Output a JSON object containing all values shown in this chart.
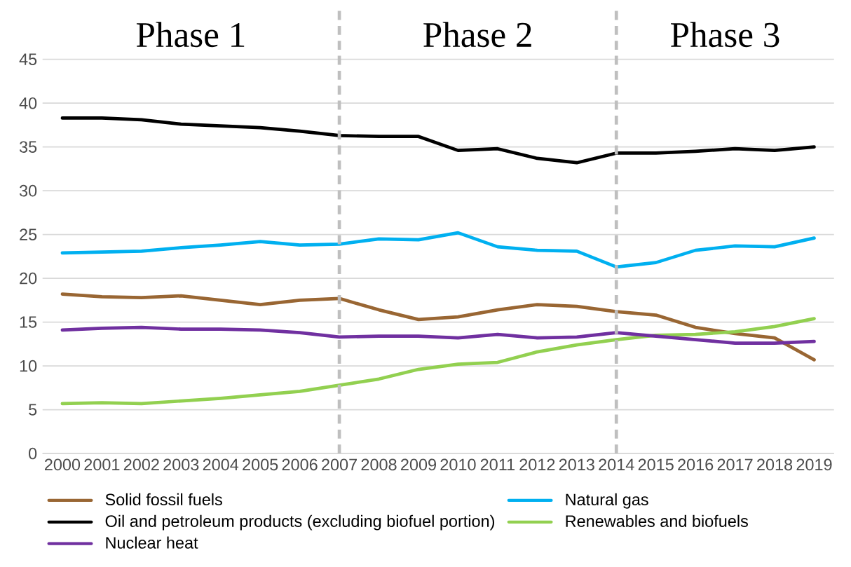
{
  "chart_data": {
    "type": "line",
    "x": [
      2000,
      2001,
      2002,
      2003,
      2004,
      2005,
      2006,
      2007,
      2008,
      2009,
      2010,
      2011,
      2012,
      2013,
      2014,
      2015,
      2016,
      2017,
      2018,
      2019
    ],
    "xlim": [
      1999.5,
      2019.5
    ],
    "xticks": [
      2000,
      2001,
      2002,
      2003,
      2004,
      2005,
      2006,
      2007,
      2008,
      2009,
      2010,
      2011,
      2012,
      2013,
      2014,
      2015,
      2016,
      2017,
      2018,
      2019
    ],
    "ylim": [
      0,
      51
    ],
    "yticks": [
      0,
      5,
      10,
      15,
      20,
      25,
      30,
      35,
      40,
      45
    ],
    "grid": "y",
    "legend": "bottom",
    "line_style": "solid",
    "marker": "none",
    "series": [
      {
        "name": "Solid fossil fuels",
        "color": "#996633",
        "values": [
          18.2,
          17.9,
          17.8,
          18.0,
          17.5,
          17.0,
          17.5,
          17.7,
          16.4,
          15.3,
          15.6,
          16.4,
          17.0,
          16.8,
          16.2,
          15.8,
          14.4,
          13.7,
          13.2,
          10.7
        ]
      },
      {
        "name": "Natural gas",
        "color": "#00b0f0",
        "values": [
          22.9,
          23.0,
          23.1,
          23.5,
          23.8,
          24.2,
          23.8,
          23.9,
          24.5,
          24.4,
          25.2,
          23.6,
          23.2,
          23.1,
          21.3,
          21.8,
          23.2,
          23.7,
          23.6,
          24.6
        ]
      },
      {
        "name": "Oil and petroleum products (excluding biofuel portion)",
        "color": "#000000",
        "values": [
          38.3,
          38.3,
          38.1,
          37.6,
          37.4,
          37.2,
          36.8,
          36.3,
          36.2,
          36.2,
          34.6,
          34.8,
          33.7,
          33.2,
          34.3,
          34.3,
          34.5,
          34.8,
          34.6,
          35.0
        ]
      },
      {
        "name": "Renewables and biofuels",
        "color": "#92d050",
        "values": [
          5.7,
          5.8,
          5.7,
          6.0,
          6.3,
          6.7,
          7.1,
          7.8,
          8.5,
          9.6,
          10.2,
          10.4,
          11.6,
          12.4,
          13.0,
          13.5,
          13.6,
          13.9,
          14.5,
          15.4
        ]
      },
      {
        "name": "Nuclear heat",
        "color": "#7030a0",
        "values": [
          14.1,
          14.3,
          14.4,
          14.2,
          14.2,
          14.1,
          13.8,
          13.3,
          13.4,
          13.4,
          13.2,
          13.6,
          13.2,
          13.3,
          13.8,
          13.4,
          13.0,
          12.6,
          12.6,
          12.8
        ]
      }
    ],
    "ref_lines": [
      {
        "axis": "x",
        "value": 2007,
        "color": "#bfbfbf",
        "line_style": "dashed"
      },
      {
        "axis": "x",
        "value": 2014,
        "color": "#bfbfbf",
        "line_style": "dashed"
      }
    ],
    "annotations": [
      "Phase 1",
      "Phase 2",
      "Phase 3"
    ]
  }
}
